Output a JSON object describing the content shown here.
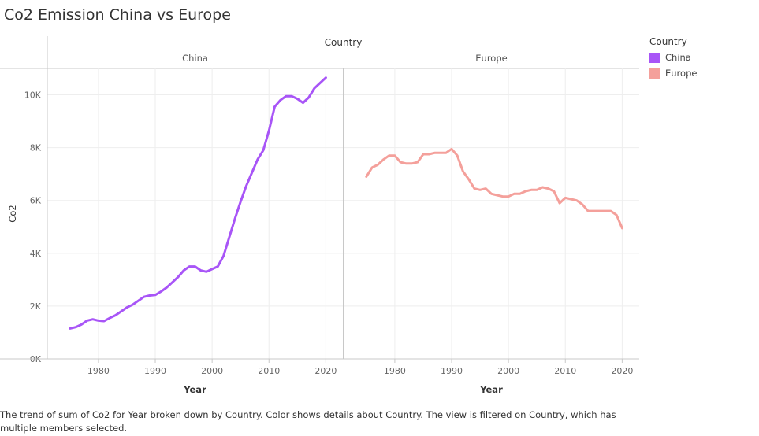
{
  "title": "Co2 Emission China vs Europe",
  "caption": "The trend of sum of Co2 for Year broken down by Country.  Color shows details about Country. The view is filtered on Country, which has multiple members selected.",
  "colors": {
    "China": "#a855f7",
    "Europe": "#f4a09b",
    "grid": "#eeeeee",
    "axis": "#c8c8c8"
  },
  "chart_data": {
    "type": "line",
    "column_header": "Country",
    "panels": [
      "China",
      "Europe"
    ],
    "xlabel": "Year",
    "ylabel": "Co2",
    "x_ticks": [
      1980,
      1990,
      2000,
      2010,
      2020
    ],
    "y_ticks": [
      0,
      2000,
      4000,
      6000,
      8000,
      10000
    ],
    "y_tick_labels": [
      "0K",
      "2K",
      "4K",
      "6K",
      "8K",
      "10K"
    ],
    "xlim": [
      1971,
      2023
    ],
    "ylim": [
      0,
      11000
    ],
    "legend": {
      "title": "Country",
      "placement": "right",
      "entries": [
        "China",
        "Europe"
      ]
    },
    "series": [
      {
        "name": "China",
        "x": [
          1975,
          1976,
          1977,
          1978,
          1979,
          1980,
          1981,
          1982,
          1983,
          1984,
          1985,
          1986,
          1987,
          1988,
          1989,
          1990,
          1991,
          1992,
          1993,
          1994,
          1995,
          1996,
          1997,
          1998,
          1999,
          2000,
          2001,
          2002,
          2003,
          2004,
          2005,
          2006,
          2007,
          2008,
          2009,
          2010,
          2011,
          2012,
          2013,
          2014,
          2015,
          2016,
          2017,
          2018,
          2019,
          2020
        ],
        "values": [
          1150,
          1200,
          1300,
          1450,
          1500,
          1450,
          1430,
          1550,
          1650,
          1800,
          1950,
          2050,
          2200,
          2350,
          2400,
          2420,
          2550,
          2700,
          2900,
          3100,
          3350,
          3500,
          3500,
          3350,
          3300,
          3400,
          3500,
          3900,
          4600,
          5300,
          5950,
          6550,
          7050,
          7550,
          7900,
          8650,
          9550,
          9800,
          9950,
          9950,
          9850,
          9700,
          9900,
          10250,
          10450,
          10650
        ]
      },
      {
        "name": "Europe",
        "x": [
          1975,
          1976,
          1977,
          1978,
          1979,
          1980,
          1981,
          1982,
          1983,
          1984,
          1985,
          1986,
          1987,
          1988,
          1989,
          1990,
          1991,
          1992,
          1993,
          1994,
          1995,
          1996,
          1997,
          1998,
          1999,
          2000,
          2001,
          2002,
          2003,
          2004,
          2005,
          2006,
          2007,
          2008,
          2009,
          2010,
          2011,
          2012,
          2013,
          2014,
          2015,
          2016,
          2017,
          2018,
          2019,
          2020
        ],
        "values": [
          6900,
          7250,
          7350,
          7550,
          7700,
          7700,
          7450,
          7400,
          7400,
          7450,
          7750,
          7750,
          7800,
          7800,
          7800,
          7950,
          7700,
          7100,
          6800,
          6450,
          6400,
          6450,
          6250,
          6200,
          6150,
          6150,
          6250,
          6250,
          6350,
          6400,
          6400,
          6500,
          6450,
          6350,
          5900,
          6100,
          6050,
          6000,
          5850,
          5600,
          5600,
          5600,
          5600,
          5600,
          5450,
          4950
        ]
      }
    ]
  }
}
